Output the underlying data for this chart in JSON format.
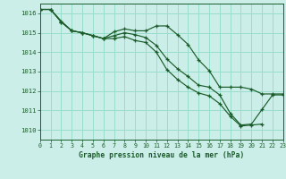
{
  "title": "Graphe pression niveau de la mer (hPa)",
  "background_color": "#cceee8",
  "grid_color": "#99ddcc",
  "line_color": "#1a5c2a",
  "xlim": [
    0,
    23
  ],
  "ylim": [
    1009.5,
    1016.5
  ],
  "yticks": [
    1010,
    1011,
    1012,
    1013,
    1014,
    1015,
    1016
  ],
  "xticks": [
    0,
    1,
    2,
    3,
    4,
    5,
    6,
    7,
    8,
    9,
    10,
    11,
    12,
    13,
    14,
    15,
    16,
    17,
    18,
    19,
    20,
    21,
    22,
    23
  ],
  "series": [
    {
      "x": [
        0,
        1,
        2,
        3,
        4,
        5,
        6,
        7,
        8,
        9,
        10,
        11,
        12,
        13,
        14,
        15,
        16,
        17,
        18,
        19,
        20,
        21,
        22,
        23
      ],
      "y": [
        1016.2,
        1016.2,
        1015.6,
        1015.1,
        1015.0,
        1014.85,
        1014.7,
        1015.05,
        1015.2,
        1015.1,
        1015.1,
        1015.35,
        1015.35,
        1014.9,
        1014.4,
        1013.6,
        1013.05,
        1012.2,
        1012.2,
        1012.2,
        1012.1,
        1011.85,
        1011.85,
        1011.85
      ]
    },
    {
      "x": [
        0,
        1,
        2,
        3,
        4,
        5,
        6,
        7,
        8,
        9,
        10,
        11,
        12,
        13,
        14,
        15,
        16,
        17,
        18,
        19,
        20,
        21,
        22,
        23
      ],
      "y": [
        1016.2,
        1016.2,
        1015.55,
        1015.1,
        1015.0,
        1014.85,
        1014.7,
        1014.85,
        1015.0,
        1014.9,
        1014.75,
        1014.35,
        1013.65,
        1013.15,
        1012.75,
        1012.3,
        1012.2,
        1011.8,
        1010.85,
        1010.25,
        1010.3,
        1011.05,
        1011.8,
        1011.8
      ]
    },
    {
      "x": [
        0,
        1,
        2,
        3,
        4,
        5,
        6,
        7,
        8,
        9,
        10,
        11,
        12,
        13,
        14,
        15,
        16,
        17,
        18,
        19,
        20,
        21
      ],
      "y": [
        1016.2,
        1016.2,
        1015.55,
        1015.1,
        1015.0,
        1014.85,
        1014.7,
        1014.7,
        1014.8,
        1014.6,
        1014.5,
        1014.0,
        1013.1,
        1012.6,
        1012.2,
        1011.9,
        1011.75,
        1011.35,
        1010.7,
        1010.2,
        1010.25,
        1010.3
      ]
    }
  ]
}
